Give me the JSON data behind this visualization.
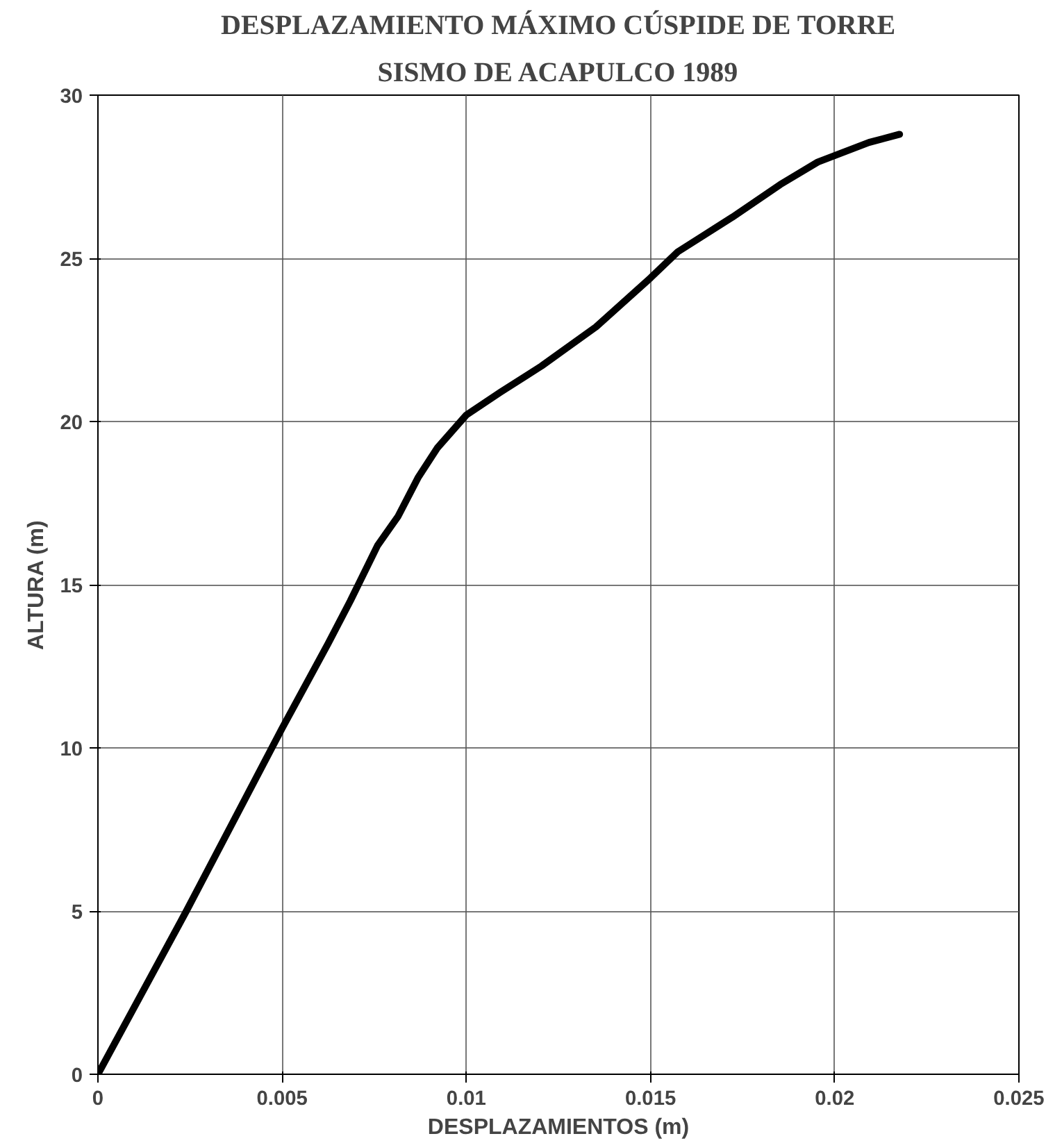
{
  "chart_data": {
    "type": "line",
    "title": "DESPLAZAMIENTO MÁXIMO CÚSPIDE DE TORRE",
    "subtitle": "SISMO DE ACAPULCO 1989",
    "xlabel": "DESPLAZAMIENTOS (m)",
    "ylabel": "ALTURA (m)",
    "series": [
      {
        "color": "#000000",
        "x": [
          0,
          0.0024,
          0.005,
          0.00625,
          0.00685,
          0.00759,
          0.00815,
          0.0087,
          0.00922,
          0.01,
          0.01093,
          0.01204,
          0.01352,
          0.015,
          0.01574,
          0.01722,
          0.01852,
          0.01954,
          0.02093,
          0.02176
        ],
        "values": [
          0,
          5.0,
          10.6,
          13.2,
          14.5,
          16.2,
          17.1,
          18.3,
          19.2,
          20.2,
          20.9,
          21.7,
          22.9,
          24.4,
          25.2,
          26.26,
          27.26,
          27.95,
          28.55,
          28.8
        ]
      }
    ],
    "xlim": [
      0,
      0.025
    ],
    "ylim": [
      0,
      30
    ],
    "xticks": [
      0,
      0.005,
      0.01,
      0.015,
      0.02,
      0.025
    ],
    "yticks": [
      0,
      5,
      10,
      15,
      20,
      25,
      30
    ],
    "grid": true,
    "marker": "none",
    "line_style": "solid"
  }
}
